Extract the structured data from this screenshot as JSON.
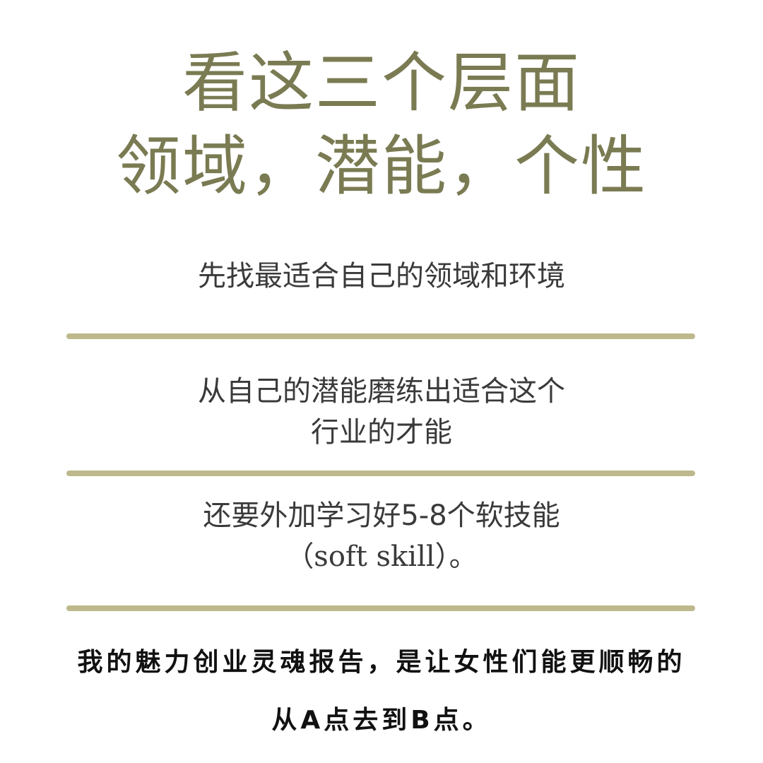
{
  "title": {
    "line1": "看这三个层面",
    "line2": "领域，潜能，个性"
  },
  "points": [
    {
      "lines": [
        "先找最适合自己的领域和环境"
      ]
    },
    {
      "lines": [
        "从自己的潜能磨练出适合这个",
        "行业的才能"
      ]
    },
    {
      "lines": [
        "还要外加学习好5-8个软技能",
        "（soft skill）。"
      ]
    }
  ],
  "footer": {
    "line1": "我的魅力创业灵魂报告，是让女性们能更顺畅的",
    "line2": "从A点去到B点。"
  },
  "colors": {
    "title": "#7a7b52",
    "divider": "#bdb98c",
    "body_text": "#3a3a3a",
    "footer_text": "#111111",
    "background": "#ffffff"
  }
}
